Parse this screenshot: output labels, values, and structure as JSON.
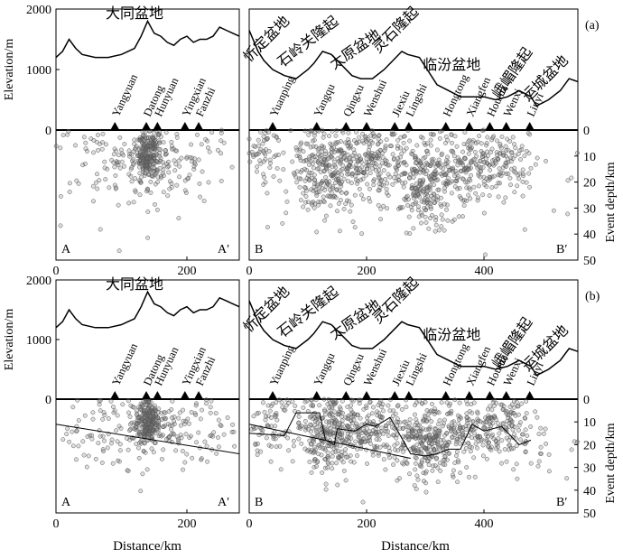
{
  "figure": {
    "ylabel_left": "Elevation/m",
    "ylabel_right": "Event depth/km",
    "xlabel": "Distance/km"
  },
  "chart_data": [
    {
      "type": "scatter",
      "panel_label": "(a)",
      "sections": [
        {
          "start_label": "A",
          "end_label": "A′",
          "xlim": [
            0,
            280
          ],
          "x_ticks": [
            0,
            200
          ],
          "basin_labels": [
            {
              "text": "大同盆地",
              "x": 120,
              "elev": 1850,
              "rotate": 0
            }
          ],
          "topography": {
            "x": [
              0,
              10,
              20,
              30,
              40,
              60,
              80,
              100,
              110,
              120,
              130,
              140,
              150,
              160,
              170,
              180,
              190,
              200,
              210,
              220,
              230,
              240,
              250,
              260,
              270,
              280
            ],
            "elev": [
              1200,
              1300,
              1500,
              1350,
              1250,
              1200,
              1200,
              1250,
              1300,
              1350,
              1550,
              1800,
              1600,
              1550,
              1450,
              1400,
              1500,
              1550,
              1450,
              1500,
              1500,
              1550,
              1700,
              1650,
              1600,
              1550
            ]
          },
          "stations": [
            {
              "name": "Yangyuan",
              "x": 90
            },
            {
              "name": "Datong",
              "x": 138
            },
            {
              "name": "Hunyuan",
              "x": 155
            },
            {
              "name": "Yingxian",
              "x": 197
            },
            {
              "name": "Fanzhi",
              "x": 218
            }
          ]
        },
        {
          "start_label": "B",
          "end_label": "B′",
          "xlim": [
            0,
            560
          ],
          "x_ticks": [
            0,
            200,
            400
          ],
          "basin_labels": [
            {
              "text": "忻定盆地",
              "x": 35,
              "elev": 1450,
              "rotate": -45
            },
            {
              "text": "石岭关隆起",
              "x": 105,
              "elev": 1400,
              "rotate": -38
            },
            {
              "text": "太原盆地",
              "x": 185,
              "elev": 1270,
              "rotate": -35
            },
            {
              "text": "灵石隆起",
              "x": 255,
              "elev": 1600,
              "rotate": -45
            },
            {
              "text": "临汾盆地",
              "x": 345,
              "elev": 1000,
              "rotate": 0
            },
            {
              "text": "峨嵋隆起",
              "x": 455,
              "elev": 900,
              "rotate": -55
            },
            {
              "text": "运城盆地",
              "x": 510,
              "elev": 800,
              "rotate": -45
            }
          ],
          "topography": {
            "x": [
              0,
              15,
              25,
              40,
              60,
              80,
              100,
              110,
              125,
              140,
              155,
              160,
              175,
              190,
              210,
              230,
              250,
              260,
              270,
              290,
              300,
              320,
              340,
              360,
              380,
              400,
              420,
              440,
              460,
              480,
              490,
              510,
              530,
              545,
              560
            ],
            "elev": [
              1650,
              1300,
              1150,
              1000,
              900,
              850,
              1000,
              1100,
              1300,
              1250,
              1100,
              1050,
              900,
              850,
              850,
              1000,
              1200,
              1300,
              1250,
              1200,
              1050,
              750,
              650,
              550,
              550,
              550,
              500,
              550,
              650,
              550,
              400,
              500,
              650,
              850,
              800
            ]
          },
          "stations": [
            {
              "name": "Yuanping",
              "x": 40
            },
            {
              "name": "Yangqu",
              "x": 115
            },
            {
              "name": "Qingxu",
              "x": 165
            },
            {
              "name": "Wenshui",
              "x": 200
            },
            {
              "name": "Jiexiu",
              "x": 248
            },
            {
              "name": "Lingshi",
              "x": 272
            },
            {
              "name": "Hongtong",
              "x": 335
            },
            {
              "name": "Xiangfen",
              "x": 375
            },
            {
              "name": "Houma",
              "x": 410
            },
            {
              "name": "Wenxi",
              "x": 438
            },
            {
              "name": "Linyi",
              "x": 478
            }
          ]
        }
      ],
      "elevation_axis": {
        "label": "Elevation/m",
        "ticks": [
          0,
          1000,
          2000
        ],
        "range": [
          0,
          2000
        ]
      },
      "depth_axis": {
        "label": "Event depth/km",
        "ticks": [
          0,
          10,
          20,
          30,
          40,
          50
        ],
        "range": [
          0,
          50
        ]
      }
    },
    {
      "type": "scatter",
      "panel_label": "(b)",
      "sections": [
        {
          "start_label": "A",
          "end_label": "A′",
          "xlim": [
            0,
            280
          ],
          "x_ticks": [
            0,
            200
          ],
          "basin_labels": [
            {
              "text": "大同盆地",
              "x": 120,
              "elev": 1850,
              "rotate": 0
            }
          ],
          "topography": {
            "x": [
              0,
              10,
              20,
              30,
              40,
              60,
              80,
              100,
              110,
              120,
              130,
              140,
              150,
              160,
              170,
              180,
              190,
              200,
              210,
              220,
              230,
              240,
              250,
              260,
              270,
              280
            ],
            "elev": [
              1200,
              1300,
              1500,
              1350,
              1250,
              1200,
              1200,
              1250,
              1300,
              1350,
              1550,
              1800,
              1600,
              1550,
              1450,
              1400,
              1500,
              1550,
              1450,
              1500,
              1500,
              1550,
              1700,
              1650,
              1600,
              1550
            ]
          },
          "stations": [
            {
              "name": "Yangyuan",
              "x": 90
            },
            {
              "name": "Datong",
              "x": 138
            },
            {
              "name": "Hunyuan",
              "x": 155
            },
            {
              "name": "Yingxian",
              "x": 197
            },
            {
              "name": "Fanzhi",
              "x": 218
            }
          ],
          "brittle_ductile_line": {
            "x": [
              0,
              280
            ],
            "depth": [
              11,
              24
            ]
          }
        },
        {
          "start_label": "B",
          "end_label": "B′",
          "xlim": [
            0,
            560
          ],
          "x_ticks": [
            0,
            200,
            400
          ],
          "basin_labels": [
            {
              "text": "忻定盆地",
              "x": 35,
              "elev": 1450,
              "rotate": -45
            },
            {
              "text": "石岭关隆起",
              "x": 105,
              "elev": 1400,
              "rotate": -38
            },
            {
              "text": "太原盆地",
              "x": 185,
              "elev": 1270,
              "rotate": -35
            },
            {
              "text": "灵石隆起",
              "x": 255,
              "elev": 1600,
              "rotate": -45
            },
            {
              "text": "临汾盆地",
              "x": 345,
              "elev": 1000,
              "rotate": 0
            },
            {
              "text": "峨嵋隆起",
              "x": 455,
              "elev": 900,
              "rotate": -55
            },
            {
              "text": "运城盆地",
              "x": 510,
              "elev": 800,
              "rotate": -45
            }
          ],
          "topography": {
            "x": [
              0,
              15,
              25,
              40,
              60,
              80,
              100,
              110,
              125,
              140,
              155,
              160,
              175,
              190,
              210,
              230,
              250,
              260,
              270,
              290,
              300,
              320,
              340,
              360,
              380,
              400,
              420,
              440,
              460,
              480,
              490,
              510,
              530,
              545,
              560
            ],
            "elev": [
              1650,
              1300,
              1150,
              1000,
              900,
              850,
              1000,
              1100,
              1300,
              1250,
              1100,
              1050,
              900,
              850,
              850,
              1000,
              1200,
              1300,
              1250,
              1200,
              1050,
              750,
              650,
              550,
              550,
              550,
              500,
              550,
              650,
              550,
              400,
              500,
              650,
              850,
              800
            ]
          },
          "stations": [
            {
              "name": "Yuanping",
              "x": 40
            },
            {
              "name": "Yangqu",
              "x": 115
            },
            {
              "name": "Qingxu",
              "x": 165
            },
            {
              "name": "Wenshui",
              "x": 200
            },
            {
              "name": "Jiexiu",
              "x": 248
            },
            {
              "name": "Lingshi",
              "x": 272
            },
            {
              "name": "Hongtong",
              "x": 335
            },
            {
              "name": "Xiangfen",
              "x": 375
            },
            {
              "name": "Houma",
              "x": 410
            },
            {
              "name": "Wenxi",
              "x": 438
            },
            {
              "name": "Linyi",
              "x": 478
            }
          ],
          "brittle_ductile_line": {
            "x": [
              0,
              60,
              80,
              120,
              130,
              145,
              150,
              180,
              200,
              215,
              240,
              275,
              300,
              320,
              340,
              360,
              380,
              400,
              430,
              460,
              480
            ],
            "depth": [
              15,
              16,
              6,
              6,
              18,
              20,
              13,
              14,
              11,
              12,
              8,
              24,
              25,
              24,
              22,
              22,
              11,
              14,
              12,
              20,
              18
            ]
          },
          "extra_dividing_line": {
            "x": [
              0,
              275
            ],
            "depth": [
              11,
              26
            ]
          }
        }
      ],
      "elevation_axis": {
        "label": "Elevation/m",
        "ticks": [
          0,
          1000,
          2000
        ],
        "range": [
          0,
          2000
        ]
      },
      "depth_axis": {
        "label": "Event depth/km",
        "ticks": [
          0,
          10,
          20,
          30,
          40,
          50
        ],
        "range": [
          0,
          50
        ]
      },
      "xlabel": "Distance/km"
    }
  ],
  "event_clusters": [
    {
      "section": 0,
      "x": 140,
      "depth": 10,
      "sx": 10,
      "sd": 5,
      "n": 230
    },
    {
      "section": 0,
      "x": 180,
      "depth": 12,
      "sx": 35,
      "sd": 7,
      "n": 70
    },
    {
      "section": 0,
      "x": 90,
      "depth": 12,
      "sx": 45,
      "sd": 9,
      "n": 60
    },
    {
      "section": 0,
      "x": 140,
      "depth": 15,
      "sx": 90,
      "sd": 12,
      "n": 80
    },
    {
      "section": 1,
      "x": 25,
      "depth": 10,
      "sx": 20,
      "sd": 6,
      "n": 50
    },
    {
      "section": 1,
      "x": 135,
      "depth": 15,
      "sx": 30,
      "sd": 8,
      "n": 260
    },
    {
      "section": 1,
      "x": 210,
      "depth": 12,
      "sx": 28,
      "sd": 6,
      "n": 130
    },
    {
      "section": 1,
      "x": 300,
      "depth": 20,
      "sx": 25,
      "sd": 8,
      "n": 220
    },
    {
      "section": 1,
      "x": 370,
      "depth": 15,
      "sx": 30,
      "sd": 7,
      "n": 140
    },
    {
      "section": 1,
      "x": 440,
      "depth": 12,
      "sx": 25,
      "sd": 6,
      "n": 90
    },
    {
      "section": 1,
      "x": 250,
      "depth": 15,
      "sx": 180,
      "sd": 12,
      "n": 200
    }
  ],
  "style": {
    "line_color": "#000000",
    "marker_edge": "#555555",
    "marker_fill": "rgba(120,120,120,0.25)"
  }
}
